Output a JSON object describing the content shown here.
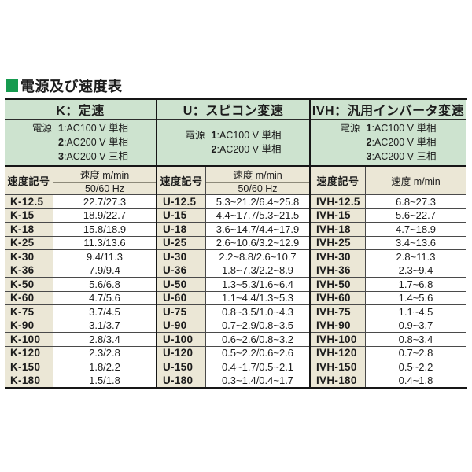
{
  "title": {
    "text": "電源及び速度表"
  },
  "colors": {
    "accent_green": "#169a4f",
    "header_green": "#cde3cf",
    "header_beige": "#ebe7d6",
    "thick_border": "#161616",
    "thin_border": "#4a4a4a"
  },
  "table": {
    "sections": [
      {
        "key": "K",
        "type_label": "K：定速",
        "power_label": "電源",
        "power_items": [
          {
            "num": "1",
            "spec": "AC100 V 単相"
          },
          {
            "num": "2",
            "spec": "AC200 V 単相"
          },
          {
            "num": "3",
            "spec": "AC200 V 三相"
          }
        ],
        "col_headers": {
          "code": "速度記号",
          "speed": "速度 m/min",
          "freq": "50/60 Hz"
        },
        "rows": [
          [
            "K-12.5",
            "22.7/27.3"
          ],
          [
            "K-15",
            "18.9/22.7"
          ],
          [
            "K-18",
            "15.8/18.9"
          ],
          [
            "K-25",
            "11.3/13.6"
          ],
          [
            "K-30",
            "9.4/11.3"
          ],
          [
            "K-36",
            "7.9/9.4"
          ],
          [
            "K-50",
            "5.6/6.8"
          ],
          [
            "K-60",
            "4.7/5.6"
          ],
          [
            "K-75",
            "3.7/4.5"
          ],
          [
            "K-90",
            "3.1/3.7"
          ],
          [
            "K-100",
            "2.8/3.4"
          ],
          [
            "K-120",
            "2.3/2.8"
          ],
          [
            "K-150",
            "1.8/2.2"
          ],
          [
            "K-180",
            "1.5/1.8"
          ]
        ]
      },
      {
        "key": "U",
        "type_label": "U：スピコン変速",
        "power_label": "電源",
        "power_items": [
          {
            "num": "1",
            "spec": "AC100 V 単相"
          },
          {
            "num": "2",
            "spec": "AC200 V 単相"
          }
        ],
        "col_headers": {
          "code": "速度記号",
          "speed": "速度 m/min",
          "freq": "50/60 Hz"
        },
        "rows": [
          [
            "U-12.5",
            "5.3~21.2/6.4~25.8"
          ],
          [
            "U-15",
            "4.4~17.7/5.3~21.5"
          ],
          [
            "U-18",
            "3.6~14.7/4.4~17.9"
          ],
          [
            "U-25",
            "2.6~10.6/3.2~12.9"
          ],
          [
            "U-30",
            "2.2~8.8/2.6~10.7"
          ],
          [
            "U-36",
            "1.8~7.3/2.2~8.9"
          ],
          [
            "U-50",
            "1.3~5.3/1.6~6.4"
          ],
          [
            "U-60",
            "1.1~4.4/1.3~5.3"
          ],
          [
            "U-75",
            "0.8~3.5/1.0~4.3"
          ],
          [
            "U-90",
            "0.7~2.9/0.8~3.5"
          ],
          [
            "U-100",
            "0.6~2.6/0.8~3.2"
          ],
          [
            "U-120",
            "0.5~2.2/0.6~2.6"
          ],
          [
            "U-150",
            "0.4~1.7/0.5~2.1"
          ],
          [
            "U-180",
            "0.3~1.4/0.4~1.7"
          ]
        ]
      },
      {
        "key": "IVH",
        "type_label": "IVH：汎用インバータ変速",
        "power_label": "電源",
        "power_items": [
          {
            "num": "1",
            "spec": "AC100 V 単相"
          },
          {
            "num": "2",
            "spec": "AC200 V 単相"
          },
          {
            "num": "3",
            "spec": "AC200 V 三相"
          }
        ],
        "col_headers": {
          "code": "速度記号",
          "speed": "速度 m/min"
        },
        "rows": [
          [
            "IVH-12.5",
            "6.8~27.3"
          ],
          [
            "IVH-15",
            "5.6~22.7"
          ],
          [
            "IVH-18",
            "4.7~18.9"
          ],
          [
            "IVH-25",
            "3.4~13.6"
          ],
          [
            "IVH-30",
            "2.8~11.3"
          ],
          [
            "IVH-36",
            "2.3~9.4"
          ],
          [
            "IVH-50",
            "1.7~6.8"
          ],
          [
            "IVH-60",
            "1.4~5.6"
          ],
          [
            "IVH-75",
            "1.1~4.5"
          ],
          [
            "IVH-90",
            "0.9~3.7"
          ],
          [
            "IVH-100",
            "0.8~3.4"
          ],
          [
            "IVH-120",
            "0.7~2.8"
          ],
          [
            "IVH-150",
            "0.5~2.2"
          ],
          [
            "IVH-180",
            "0.4~1.8"
          ]
        ]
      }
    ]
  }
}
